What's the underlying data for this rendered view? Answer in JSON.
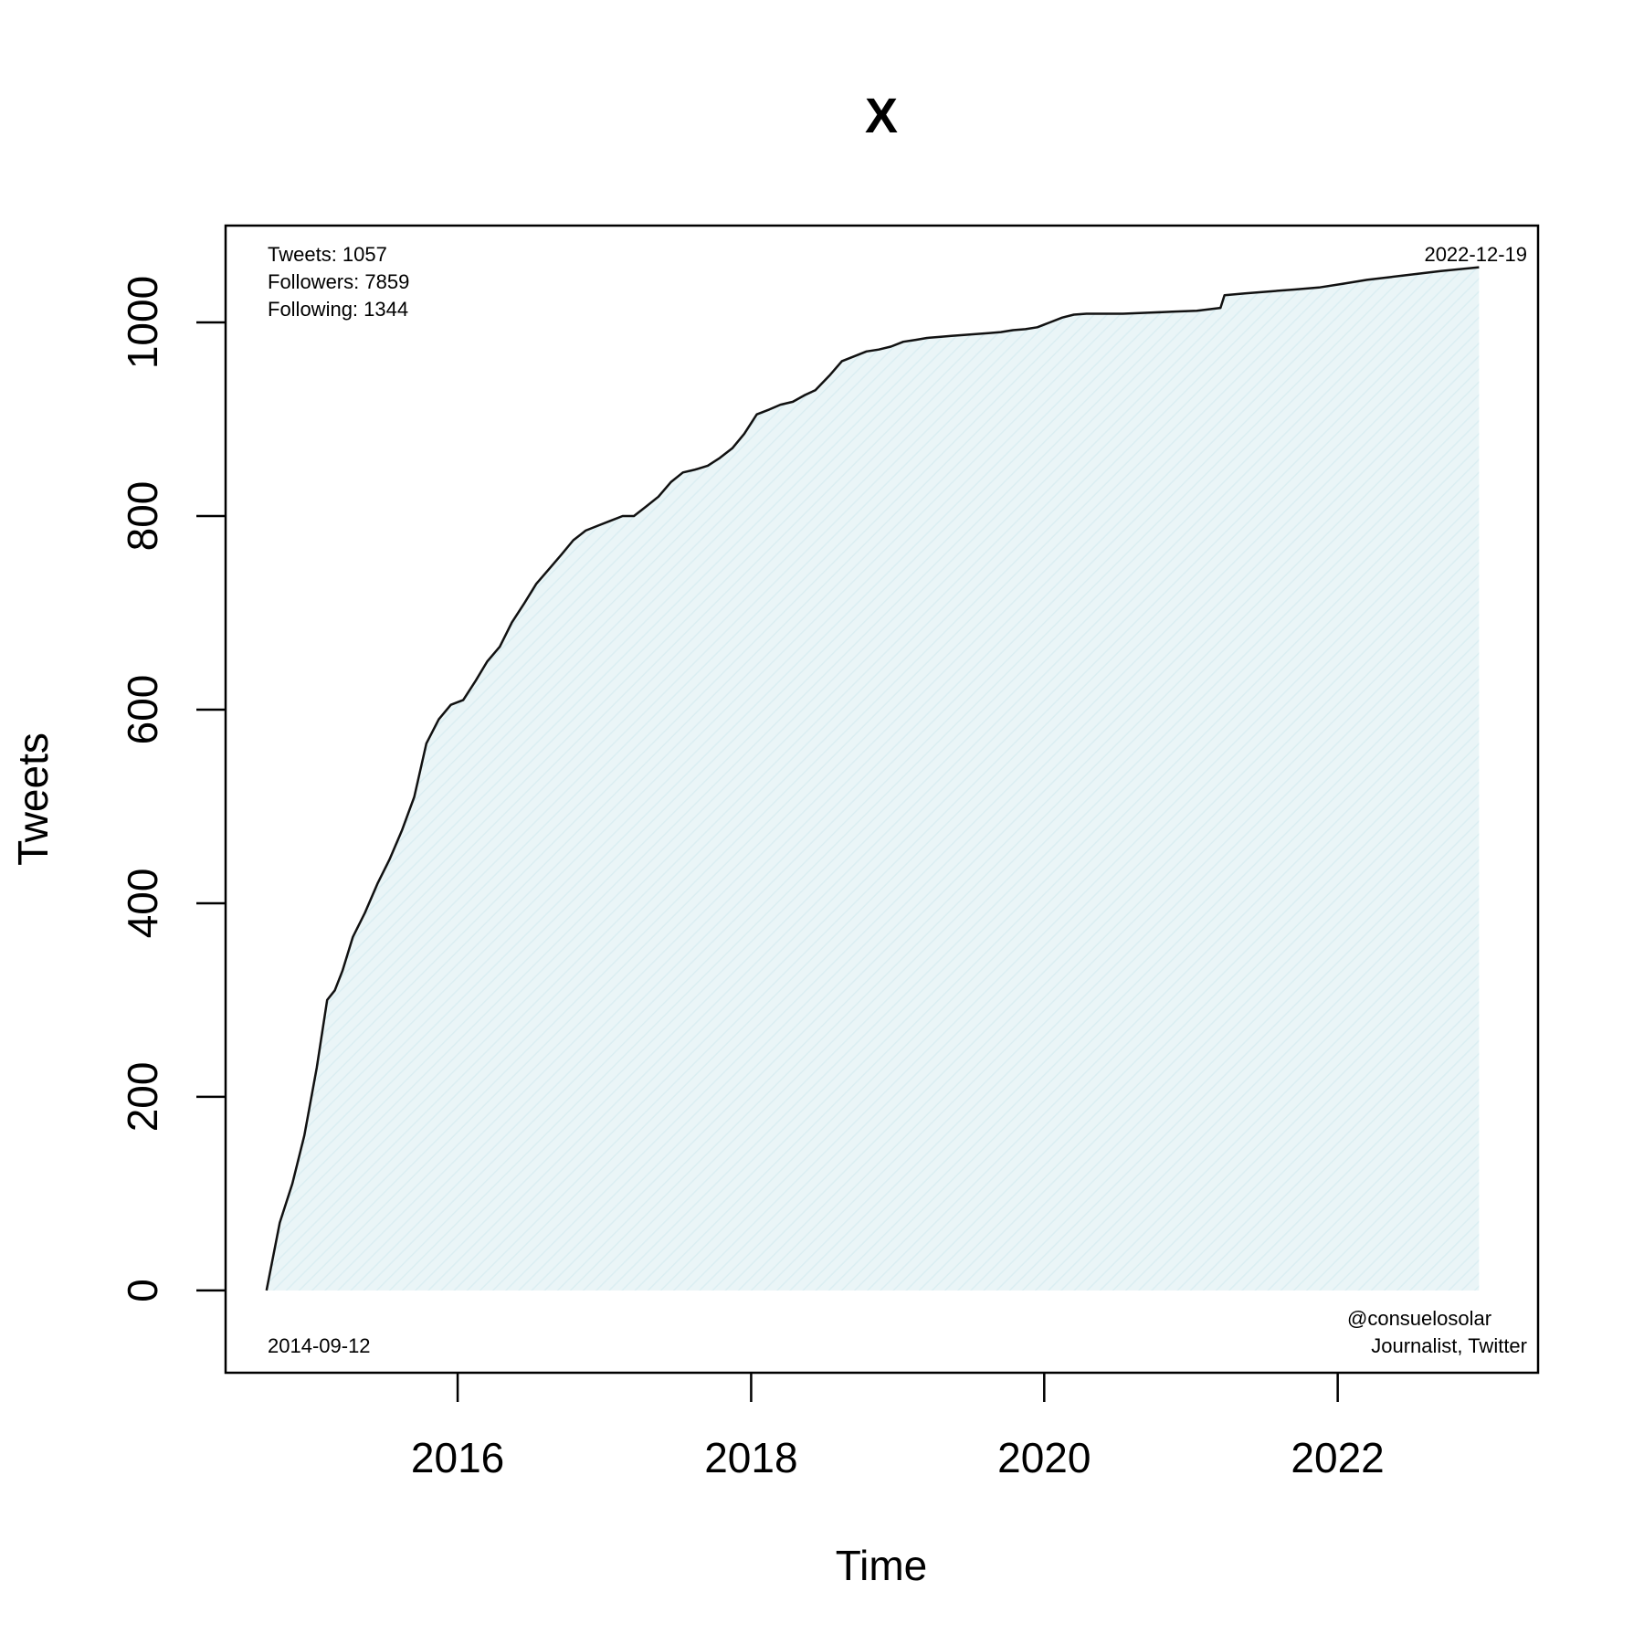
{
  "chart_data": {
    "type": "area",
    "title": "X",
    "xlabel": "Time",
    "ylabel": "Tweets",
    "x_ticks": [
      "2016",
      "2018",
      "2020",
      "2022"
    ],
    "y_ticks": [
      "0",
      "200",
      "400",
      "600",
      "800",
      "1000"
    ],
    "xlim": [
      "2014-06-02",
      "2023-05-15"
    ],
    "ylim": [
      -85,
      1100
    ],
    "grid": false,
    "fill_color": "#e6f3f6",
    "line_color": "#111111",
    "annotations": {
      "stats": [
        "Tweets: 1057",
        "Followers: 7859",
        "Following: 1344"
      ],
      "end_date": "2022-12-19",
      "start_date": "2014-09-12",
      "handle": "@consuelosolar",
      "description": "Journalist, Twitter"
    },
    "series": [
      {
        "x": [
          "2014-09-12",
          "2014-10-15",
          "2014-11-15",
          "2014-12-15",
          "2015-01-15",
          "2015-02-10",
          "2015-03-01",
          "2015-03-20",
          "2015-04-15",
          "2015-05-15",
          "2015-06-15",
          "2015-07-15",
          "2015-08-15",
          "2015-09-15",
          "2015-10-15",
          "2015-11-15",
          "2015-12-15",
          "2016-01-15",
          "2016-02-15",
          "2016-03-15",
          "2016-04-15",
          "2016-05-15",
          "2016-06-15",
          "2016-07-15",
          "2016-08-15",
          "2016-09-15",
          "2016-10-15",
          "2016-11-15",
          "2016-12-15",
          "2017-01-15",
          "2017-02-15",
          "2017-03-15",
          "2017-04-15",
          "2017-05-15",
          "2017-06-15",
          "2017-07-15",
          "2017-08-15",
          "2017-09-15",
          "2017-10-15",
          "2017-11-15",
          "2017-12-15",
          "2018-01-15",
          "2018-02-15",
          "2018-03-15",
          "2018-04-15",
          "2018-05-15",
          "2018-06-10",
          "2018-07-15",
          "2018-08-15",
          "2018-09-15",
          "2018-10-15",
          "2018-11-15",
          "2018-12-15",
          "2019-01-15",
          "2019-02-15",
          "2019-03-15",
          "2019-04-15",
          "2019-05-15",
          "2019-06-15",
          "2019-07-15",
          "2019-08-15",
          "2019-09-15",
          "2019-10-15",
          "2019-11-15",
          "2019-12-15",
          "2020-01-15",
          "2020-02-15",
          "2020-03-15",
          "2020-04-15",
          "2020-05-15",
          "2020-07-15",
          "2020-09-15",
          "2020-11-15",
          "2021-01-15",
          "2021-03-15",
          "2021-03-25",
          "2021-05-15",
          "2021-07-15",
          "2021-09-15",
          "2021-11-15",
          "2022-01-15",
          "2022-03-15",
          "2022-05-15",
          "2022-07-15",
          "2022-09-15",
          "2022-12-19"
        ],
        "y": [
          0,
          70,
          110,
          160,
          230,
          300,
          310,
          330,
          365,
          390,
          420,
          445,
          475,
          510,
          565,
          590,
          605,
          610,
          630,
          650,
          665,
          690,
          710,
          730,
          745,
          760,
          775,
          785,
          790,
          795,
          800,
          800,
          810,
          820,
          835,
          845,
          848,
          852,
          860,
          870,
          885,
          905,
          910,
          915,
          918,
          925,
          930,
          945,
          960,
          965,
          970,
          972,
          975,
          980,
          982,
          984,
          985,
          986,
          987,
          988,
          989,
          990,
          992,
          993,
          995,
          1000,
          1005,
          1008,
          1009,
          1009,
          1009,
          1010,
          1011,
          1012,
          1015,
          1028,
          1030,
          1032,
          1034,
          1036,
          1040,
          1044,
          1047,
          1050,
          1053,
          1057
        ]
      }
    ]
  }
}
